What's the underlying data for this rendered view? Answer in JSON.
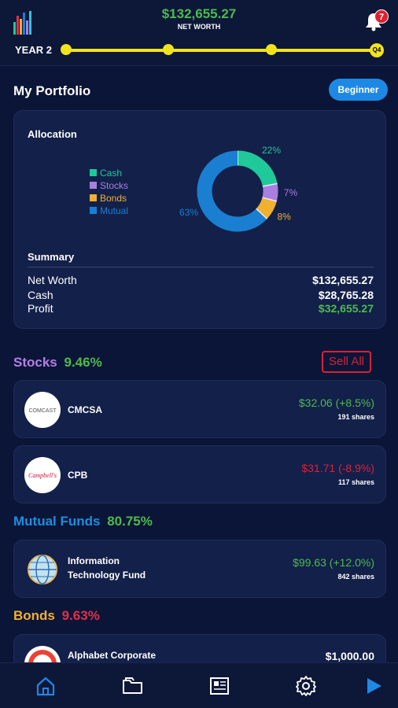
{
  "header": {
    "net_worth_value": "$132,655.27",
    "net_worth_label": "NET WORTH",
    "notification_count": "7",
    "year_label": "YEAR 2",
    "quarter_label": "Q4"
  },
  "portfolio": {
    "title": "My Portfolio",
    "level_button": "Beginner"
  },
  "allocation": {
    "title": "Allocation",
    "legend": [
      "Cash",
      "Stocks",
      "Bonds",
      "Mutual"
    ],
    "colors": [
      "#1fc99a",
      "#a97fe0",
      "#f0b030",
      "#1a7fd1"
    ],
    "percent_labels": [
      "22%",
      "7%",
      "8%",
      "63%"
    ],
    "values": [
      22,
      7,
      8,
      63
    ]
  },
  "summary": {
    "title": "Summary",
    "rows": [
      {
        "label": "Net Worth",
        "value": "$132,655.27"
      },
      {
        "label": "Cash",
        "value": "$28,765.28"
      },
      {
        "label": "Profit",
        "value": "$32,655.27"
      }
    ]
  },
  "stocks": {
    "title": "Stocks",
    "percent": "9.46%",
    "sell_all": "Sell All",
    "items": [
      {
        "logo": "COMCAST",
        "name": "CMCSA",
        "price": "$32.06 (+8.5%)",
        "shares": "191 shares"
      },
      {
        "logo": "Campbell's",
        "name": "CPB",
        "price": "$31.71 (-8.9%)",
        "shares": "117 shares"
      }
    ]
  },
  "mutual_funds": {
    "title": "Mutual Funds",
    "percent": "80.75%",
    "items": [
      {
        "name_line1": "Information",
        "name_line2": "Technology Fund",
        "price": "$99.63 (+12.0%)",
        "shares": "842 shares"
      }
    ]
  },
  "bonds": {
    "title": "Bonds",
    "percent": "9.63%",
    "items": [
      {
        "name": "Alphabet Corporate",
        "price": "$1,000.00"
      }
    ]
  },
  "nav": {
    "icons": [
      "home-icon",
      "folder-icon",
      "news-icon",
      "gear-icon",
      "play-icon"
    ]
  }
}
